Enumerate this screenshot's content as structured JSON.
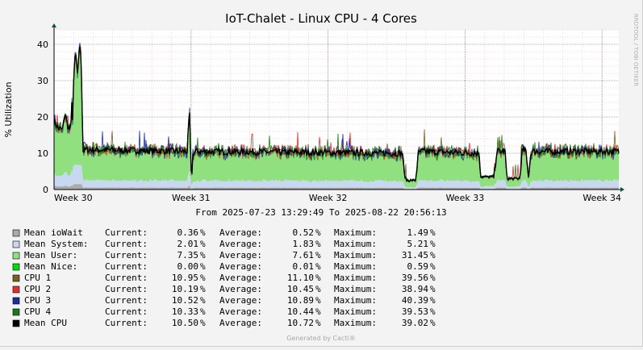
{
  "chart_data": {
    "type": "area",
    "title": "IoT-Chalet - Linux CPU - 4 Cores",
    "ylabel": "% Utilization",
    "side_label": "RRDTOOL / TOBI OETIKER",
    "footer": "Generated by Cacti®",
    "ylim": [
      0,
      44
    ],
    "yticks": [
      0,
      10,
      20,
      30,
      40
    ],
    "time_range": "From 2025-07-23 13:29:49 To 2025-08-22 20:56:13",
    "x_days": [
      0,
      30.3
    ],
    "week_ticks": [
      {
        "label": "Week 30",
        "day": 0
      },
      {
        "label": "Week 31",
        "day": 7.35
      },
      {
        "label": "Week 32",
        "day": 14.7
      },
      {
        "label": "Week 33",
        "day": 22.05
      },
      {
        "label": "Week 34",
        "day": 29.4
      }
    ],
    "colors": {
      "iowait": "#aaaaaa",
      "system": "#c8d8f0",
      "user": "#90e080",
      "nice": "#00dd00",
      "cpu1": "#7a6020",
      "cpu2": "#e03030",
      "cpu3": "#1a2f9a",
      "cpu4": "#1a7a1a",
      "mean": "#000000"
    },
    "profile": [
      [
        0.0,
        19.0
      ],
      [
        0.2,
        17.0
      ],
      [
        0.45,
        16.5
      ],
      [
        0.6,
        21.0
      ],
      [
        0.75,
        17.0
      ],
      [
        0.9,
        16.5
      ],
      [
        0.95,
        25.0
      ],
      [
        1.0,
        18.5
      ],
      [
        1.05,
        30.0
      ],
      [
        1.15,
        38.5
      ],
      [
        1.25,
        31.0
      ],
      [
        1.35,
        39.0
      ],
      [
        1.45,
        38.0
      ],
      [
        1.55,
        10.5
      ],
      [
        1.7,
        11.0
      ],
      [
        7.15,
        10.5
      ],
      [
        7.2,
        16.0
      ],
      [
        7.28,
        21.5
      ],
      [
        7.33,
        8.0
      ],
      [
        7.38,
        2.5
      ],
      [
        7.45,
        10.0
      ],
      [
        7.6,
        10.5
      ],
      [
        18.7,
        10.0
      ],
      [
        18.8,
        4.0
      ],
      [
        18.9,
        2.5
      ],
      [
        19.4,
        2.5
      ],
      [
        19.55,
        10.0
      ],
      [
        19.7,
        10.5
      ],
      [
        22.8,
        10.0
      ],
      [
        22.9,
        3.5
      ],
      [
        23.6,
        3.5
      ],
      [
        23.75,
        10.5
      ],
      [
        24.2,
        10.5
      ],
      [
        24.3,
        3.0
      ],
      [
        25.0,
        3.0
      ],
      [
        25.1,
        10.5
      ],
      [
        25.3,
        11.0
      ],
      [
        25.45,
        3.5
      ],
      [
        25.6,
        10.5
      ],
      [
        30.3,
        10.5
      ]
    ],
    "series": [
      {
        "name": "Mean ioWait",
        "current": "0.36",
        "average": "0.52",
        "maximum": "1.49"
      },
      {
        "name": "Mean System:",
        "current": "2.01",
        "average": "1.83",
        "maximum": "5.21"
      },
      {
        "name": "Mean User:",
        "current": "7.35",
        "average": "7.61",
        "maximum": "31.45"
      },
      {
        "name": "Mean Nice:",
        "current": "0.00",
        "average": "0.01",
        "maximum": "0.59"
      },
      {
        "name": "CPU 1",
        "current": "10.95",
        "average": "11.10",
        "maximum": "39.56"
      },
      {
        "name": "CPU 2",
        "current": "10.19",
        "average": "10.45",
        "maximum": "38.94"
      },
      {
        "name": "CPU 3",
        "current": "10.52",
        "average": "10.89",
        "maximum": "40.39"
      },
      {
        "name": "CPU 4",
        "current": "10.33",
        "average": "10.44",
        "maximum": "39.53"
      },
      {
        "name": "Mean CPU",
        "current": "10.50",
        "average": "10.72",
        "maximum": "39.02"
      }
    ],
    "legend_labels": {
      "current": "Current:",
      "average": "Average:",
      "maximum": "Maximum:",
      "unit": "%"
    }
  }
}
